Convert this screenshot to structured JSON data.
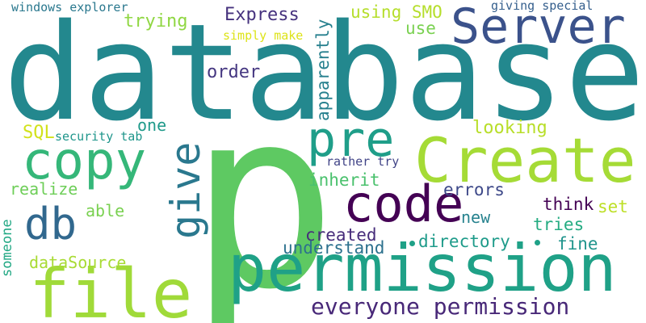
{
  "words": [
    {
      "text": "database",
      "color": "#23888e"
    },
    {
      "text": "p",
      "color": "#5ec962"
    },
    {
      "text": "permission",
      "color": "#1fa187"
    },
    {
      "text": "Create",
      "color": "#a5db36"
    },
    {
      "text": "file",
      "color": "#a0da39"
    },
    {
      "text": "Server",
      "color": "#3b528b"
    },
    {
      "text": "code",
      "color": "#440154"
    },
    {
      "text": "copy",
      "color": "#35b779"
    },
    {
      "text": "give",
      "color": "#2a788e"
    },
    {
      "text": "pre",
      "color": "#1f9e89"
    },
    {
      "text": "db",
      "color": "#31688e"
    },
    {
      "text": "everyone permission",
      "color": "#482878"
    },
    {
      "text": "Express",
      "color": "#46327e"
    },
    {
      "text": "apparently",
      "color": "#27808e"
    },
    {
      "text": "windows explorer",
      "color": "#2a788e"
    },
    {
      "text": "using SMO",
      "color": "#b5de2b"
    },
    {
      "text": "giving special",
      "color": "#355f8d"
    },
    {
      "text": "trying",
      "color": "#90d743"
    },
    {
      "text": "use",
      "color": "#7ad151"
    },
    {
      "text": "simply make",
      "color": "#dde318"
    },
    {
      "text": "order",
      "color": "#453781"
    },
    {
      "text": "one",
      "color": "#1f9a8a"
    },
    {
      "text": "looking",
      "color": "#b8de29"
    },
    {
      "text": "SQL",
      "color": "#d2e21b"
    },
    {
      "text": "security tab",
      "color": "#1f968b"
    },
    {
      "text": "rather try",
      "color": "#414487"
    },
    {
      "text": "inherit",
      "color": "#4ac16d"
    },
    {
      "text": "realize",
      "color": "#6ece58"
    },
    {
      "text": "errors",
      "color": "#3e4989"
    },
    {
      "text": "able",
      "color": "#7ad151"
    },
    {
      "text": "someone",
      "color": "#22a884"
    },
    {
      "text": "think",
      "color": "#440154"
    },
    {
      "text": "set",
      "color": "#bddf26"
    },
    {
      "text": "new",
      "color": "#26828e"
    },
    {
      "text": "tries",
      "color": "#25ac82"
    },
    {
      "text": "created",
      "color": "#472d7b"
    },
    {
      "text": "directory",
      "color": "#1e9b8a"
    },
    {
      "text": "understand",
      "color": "#2c718e"
    },
    {
      "text": "fine",
      "color": "#1f948c"
    },
    {
      "text": "dataSource",
      "color": "#a8db34"
    }
  ],
  "dot_color": "#1fa187"
}
